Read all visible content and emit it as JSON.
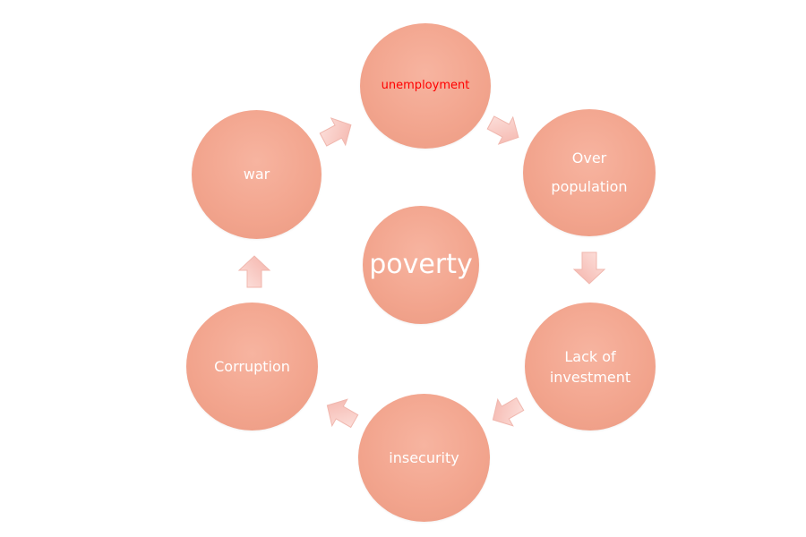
{
  "colors": {
    "node_fill": "#f2a48d",
    "node_text": "#ffffff",
    "highlight_text": "#ff0000",
    "arrow_fill": "#f8c8c2"
  },
  "nodes": {
    "center": "poverty",
    "unemployment": "unemployment",
    "over_population_line1": "Over",
    "over_population_line2": "population",
    "lack_line1": "Lack of",
    "lack_line2": "investment",
    "insecurity": "insecurity",
    "corruption": "Corruption",
    "war": "war"
  }
}
